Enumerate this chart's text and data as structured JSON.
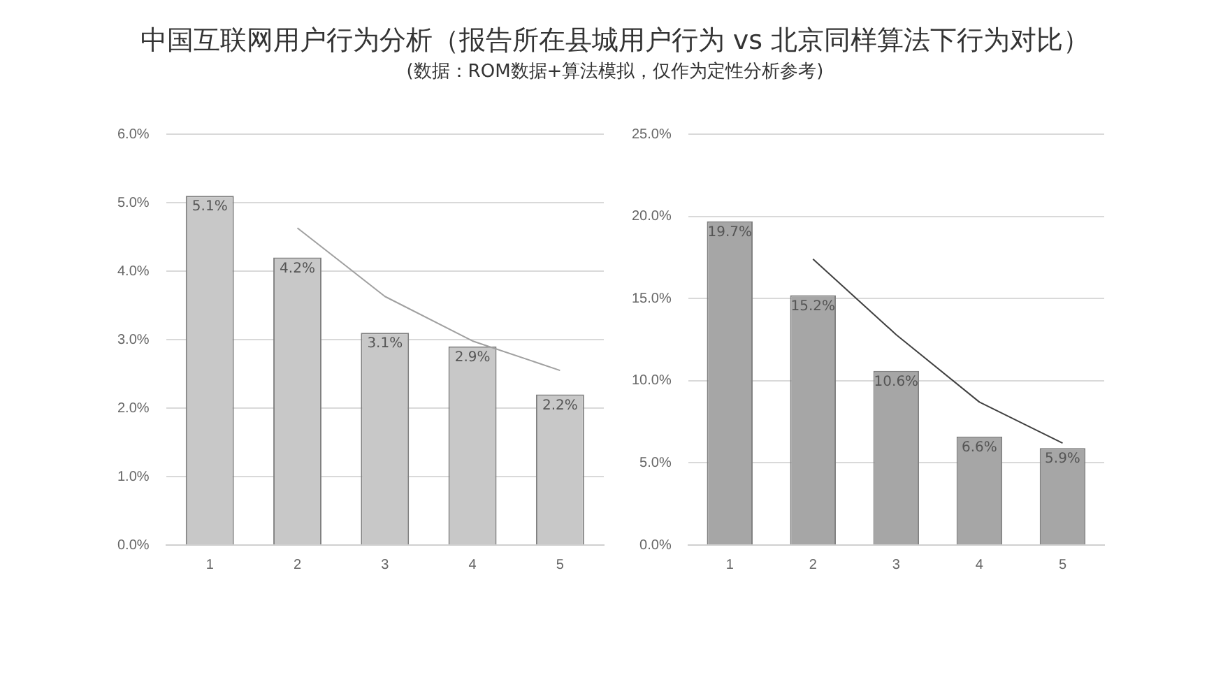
{
  "chart_data": [
    {
      "type": "bar",
      "title": "中国互联网用户行为分析（报告所在县城用户行为 vs 北京同样算法下行为对比）",
      "subtitle": "(数据：ROM数据+算法模拟，仅作为定性分析参考)",
      "categories": [
        "1",
        "2",
        "3",
        "4",
        "5"
      ],
      "series": [
        {
          "color": "#c8c8c8",
          "values": [
            5.1,
            4.2,
            3.1,
            2.9,
            2.2
          ],
          "value_labels": [
            "5.1%",
            "4.2%",
            "3.1%",
            "2.9%",
            "2.2%"
          ]
        },
        {
          "type": "line",
          "color": "#a0a0a0",
          "values": [
            null,
            4.63,
            3.63,
            2.98,
            2.55
          ]
        }
      ],
      "ylim": [
        0,
        6
      ],
      "yticks": [
        {
          "value": 0,
          "label": "0.0%"
        },
        {
          "value": 1,
          "label": "1.0%"
        },
        {
          "value": 2,
          "label": "2.0%"
        },
        {
          "value": 3,
          "label": "3.0%"
        },
        {
          "value": 4,
          "label": "4.0%"
        },
        {
          "value": 5,
          "label": "5.0%"
        },
        {
          "value": 6,
          "label": "6.0%"
        }
      ],
      "grid": "y",
      "legend": false,
      "marker": "none"
    },
    {
      "type": "bar",
      "categories": [
        "1",
        "2",
        "3",
        "4",
        "5"
      ],
      "series": [
        {
          "color": "#a6a6a6",
          "values": [
            19.7,
            15.2,
            10.6,
            6.6,
            5.9
          ],
          "value_labels": [
            "19.7%",
            "15.2%",
            "10.6%",
            "6.6%",
            "5.9%"
          ]
        },
        {
          "type": "line",
          "color": "#404040",
          "values": [
            null,
            17.4,
            12.8,
            8.7,
            6.2
          ]
        }
      ],
      "ylim": [
        0,
        25
      ],
      "yticks": [
        {
          "value": 0,
          "label": "0.0%"
        },
        {
          "value": 5,
          "label": "5.0%"
        },
        {
          "value": 10,
          "label": "10.0%"
        },
        {
          "value": 15,
          "label": "15.0%"
        },
        {
          "value": 20,
          "label": "20.0%"
        },
        {
          "value": 25,
          "label": "25.0%"
        }
      ],
      "grid": "y",
      "legend": false,
      "marker": "none"
    }
  ]
}
